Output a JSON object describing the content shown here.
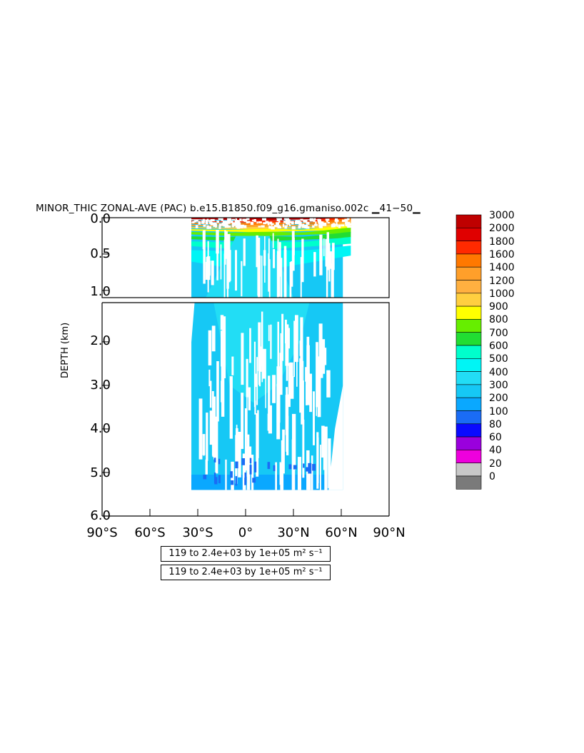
{
  "chart_data": {
    "type": "heatmap",
    "title": "MINOR_THIC ZONAL-AVE (PAC) b.e15.B1850.f09_g16.gmaniso.002c ▁41−50▁",
    "ylabel": "DEPTH (km)",
    "x_ticks": [
      "90°S",
      "60°S",
      "30°S",
      "0°",
      "30°N",
      "60°N",
      "90°N"
    ],
    "x_tick_values": [
      -90,
      -60,
      -30,
      0,
      30,
      60,
      90
    ],
    "y_ticks_upper": [
      "0.0",
      "0.5",
      "1.0"
    ],
    "y_tick_values_upper": [
      0.0,
      0.5,
      1.0
    ],
    "y_ticks_lower": [
      "2.0",
      "3.0",
      "4.0",
      "5.0",
      "6.0"
    ],
    "y_tick_values_lower": [
      2.0,
      3.0,
      4.0,
      5.0,
      6.0
    ],
    "upper_panel_ylim": [
      0.0,
      1.1
    ],
    "lower_panel_ylim": [
      1.1,
      6.0
    ],
    "xlim": [
      -90,
      90
    ],
    "data_extent": {
      "lat_min": -34,
      "lat_max_upper": 66,
      "lat_max_lower": 61,
      "max_depth_km": 5.4
    },
    "colorbar": {
      "levels": [
        "3000",
        "2000",
        "1800",
        "1600",
        "1400",
        "1200",
        "1000",
        "900",
        "800",
        "700",
        "600",
        "500",
        "400",
        "300",
        "200",
        "100",
        "80",
        "60",
        "40",
        "20",
        "0"
      ],
      "colors": [
        "#bf0000",
        "#e00000",
        "#ff2a00",
        "#ff7800",
        "#ff9f2a",
        "#ffb040",
        "#ffcf40",
        "#ffff00",
        "#66ee00",
        "#22dd33",
        "#00ffcc",
        "#00f5f5",
        "#22ddf5",
        "#16c8f5",
        "#0aa8ff",
        "#1a6cf5",
        "#0a0aff",
        "#9a00dd",
        "#ee00dd",
        "#c8c8c8",
        "#7a7a7a"
      ]
    },
    "info_lines": [
      "119 to 2.4e+03 by 1e+05 m² s⁻¹",
      "119 to 2.4e+03 by 1e+05 m² s⁻¹"
    ],
    "grid": false
  }
}
